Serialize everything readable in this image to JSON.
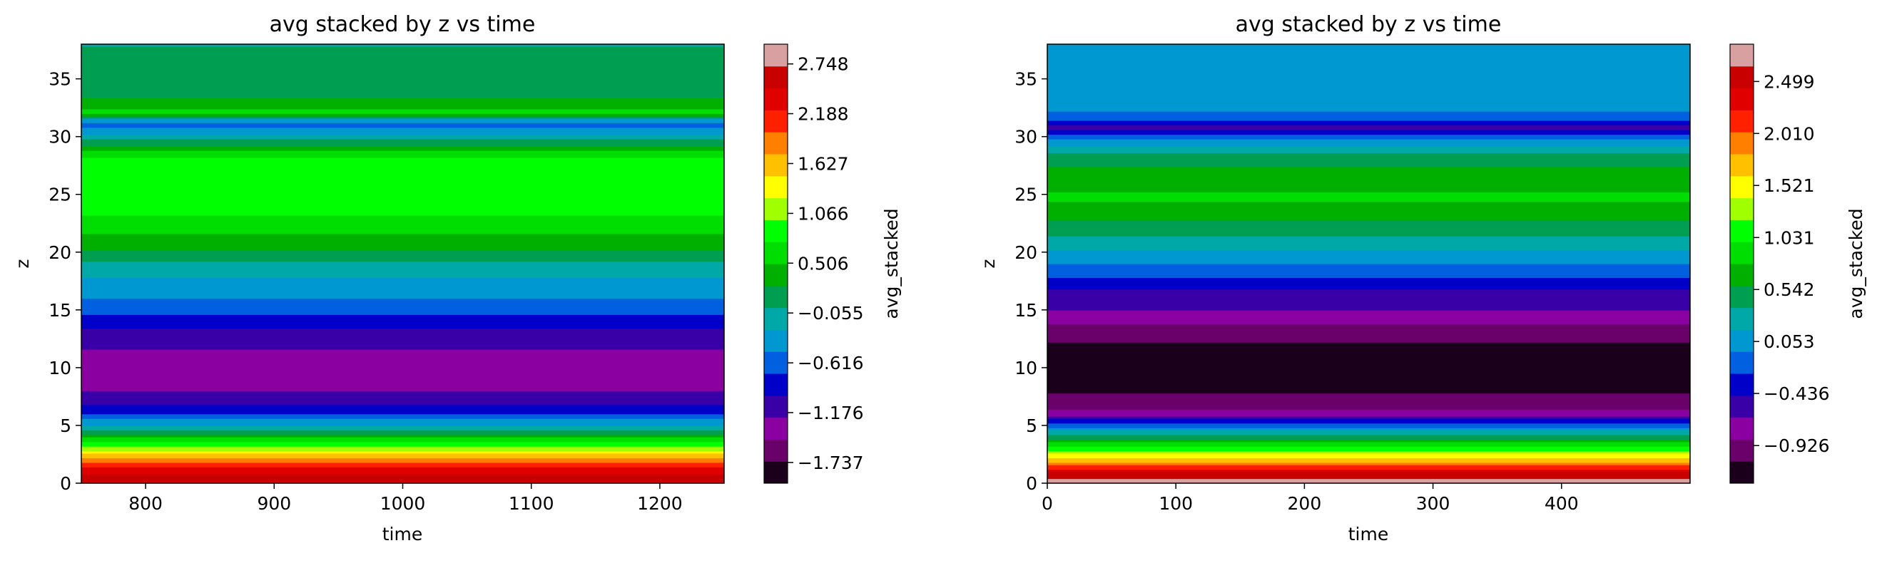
{
  "chart_data": [
    {
      "type": "heatmap",
      "title": "avg stacked by z vs time",
      "xlabel": "time",
      "ylabel": "z",
      "colorbar_label": "avg_stacked",
      "xlim": [
        750,
        1250
      ],
      "ylim": [
        0,
        38
      ],
      "x_ticks": [
        800,
        900,
        1000,
        1100,
        1200
      ],
      "y_ticks": [
        0,
        5,
        10,
        15,
        20,
        25,
        30,
        35
      ],
      "colorbar_range": [
        -1.97,
        2.97
      ],
      "colorbar_ticks": [
        "2.748",
        "2.188",
        "1.627",
        "1.066",
        "0.506",
        "−0.055",
        "−0.616",
        "−1.176",
        "−1.737"
      ],
      "colorbar_tick_values": [
        2.748,
        2.188,
        1.627,
        1.066,
        0.506,
        -0.055,
        -0.616,
        -1.176,
        -1.737
      ],
      "z_profile": [
        {
          "z": 0,
          "v": 2.75
        },
        {
          "z": 0.5,
          "v": 2.6
        },
        {
          "z": 1.2,
          "v": 2.3
        },
        {
          "z": 2.0,
          "v": 1.9
        },
        {
          "z": 2.8,
          "v": 1.3
        },
        {
          "z": 3.5,
          "v": 0.8
        },
        {
          "z": 4.2,
          "v": 0.3
        },
        {
          "z": 5.0,
          "v": -0.2
        },
        {
          "z": 6.0,
          "v": -0.7
        },
        {
          "z": 7.0,
          "v": -1.1
        },
        {
          "z": 9.0,
          "v": -1.35
        },
        {
          "z": 11.0,
          "v": -1.3
        },
        {
          "z": 13.0,
          "v": -1.05
        },
        {
          "z": 15.0,
          "v": -0.65
        },
        {
          "z": 17.0,
          "v": -0.35
        },
        {
          "z": 19.0,
          "v": -0.05
        },
        {
          "z": 20.5,
          "v": 0.3
        },
        {
          "z": 22.0,
          "v": 0.6
        },
        {
          "z": 24.0,
          "v": 0.85
        },
        {
          "z": 26.0,
          "v": 0.9
        },
        {
          "z": 28.0,
          "v": 0.8
        },
        {
          "z": 29.0,
          "v": 0.4
        },
        {
          "z": 30.0,
          "v": -0.1
        },
        {
          "z": 31.0,
          "v": -0.6
        },
        {
          "z": 31.5,
          "v": -0.3
        },
        {
          "z": 32.0,
          "v": 0.6
        },
        {
          "z": 34.0,
          "v": 0.1
        },
        {
          "z": 38.0,
          "v": 0.0
        }
      ]
    },
    {
      "type": "heatmap",
      "title": "avg stacked by z vs time",
      "xlabel": "time",
      "ylabel": "z",
      "colorbar_label": "avg_stacked",
      "xlim": [
        0,
        500
      ],
      "ylim": [
        0,
        38
      ],
      "x_ticks": [
        0,
        100,
        200,
        300,
        400
      ],
      "y_ticks": [
        0,
        5,
        10,
        15,
        20,
        25,
        30,
        35
      ],
      "colorbar_range": [
        -1.28,
        2.85
      ],
      "colorbar_ticks": [
        "2.499",
        "2.010",
        "1.521",
        "1.031",
        "0.542",
        "0.053",
        "−0.436",
        "−0.926"
      ],
      "colorbar_tick_values": [
        2.499,
        2.01,
        1.521,
        1.031,
        0.542,
        0.053,
        -0.436,
        -0.926
      ],
      "z_profile": [
        {
          "z": 0,
          "v": 2.85
        },
        {
          "z": 0.8,
          "v": 2.5
        },
        {
          "z": 1.6,
          "v": 2.0
        },
        {
          "z": 2.4,
          "v": 1.5
        },
        {
          "z": 3.2,
          "v": 1.0
        },
        {
          "z": 4.0,
          "v": 0.5
        },
        {
          "z": 4.8,
          "v": 0.0
        },
        {
          "z": 5.6,
          "v": -0.5
        },
        {
          "z": 6.2,
          "v": -0.85
        },
        {
          "z": 8.0,
          "v": -1.1
        },
        {
          "z": 10.0,
          "v": -1.2
        },
        {
          "z": 12.0,
          "v": -1.1
        },
        {
          "z": 14.0,
          "v": -0.85
        },
        {
          "z": 15.0,
          "v": -0.65
        },
        {
          "z": 16.5,
          "v": -0.5
        },
        {
          "z": 18.0,
          "v": -0.2
        },
        {
          "z": 19.5,
          "v": 0.05
        },
        {
          "z": 21.0,
          "v": 0.3
        },
        {
          "z": 22.5,
          "v": 0.55
        },
        {
          "z": 24.5,
          "v": 0.8
        },
        {
          "z": 26.5,
          "v": 0.75
        },
        {
          "z": 28.5,
          "v": 0.4
        },
        {
          "z": 30.0,
          "v": -0.1
        },
        {
          "z": 30.8,
          "v": -0.6
        },
        {
          "z": 31.5,
          "v": -0.2
        },
        {
          "z": 32.5,
          "v": 0.05
        },
        {
          "z": 38.0,
          "v": 0.05
        }
      ]
    }
  ],
  "colors": {
    "colormap": [
      "#1a001a",
      "#6a006a",
      "#8a00a0",
      "#3a00a8",
      "#0000c8",
      "#0060e0",
      "#0098d0",
      "#00a8a8",
      "#009e50",
      "#00b000",
      "#00dd00",
      "#00ff00",
      "#a0ff00",
      "#ffff00",
      "#ffc000",
      "#ff8000",
      "#ff2000",
      "#e00000",
      "#c80000",
      "#d8a0a0"
    ]
  }
}
